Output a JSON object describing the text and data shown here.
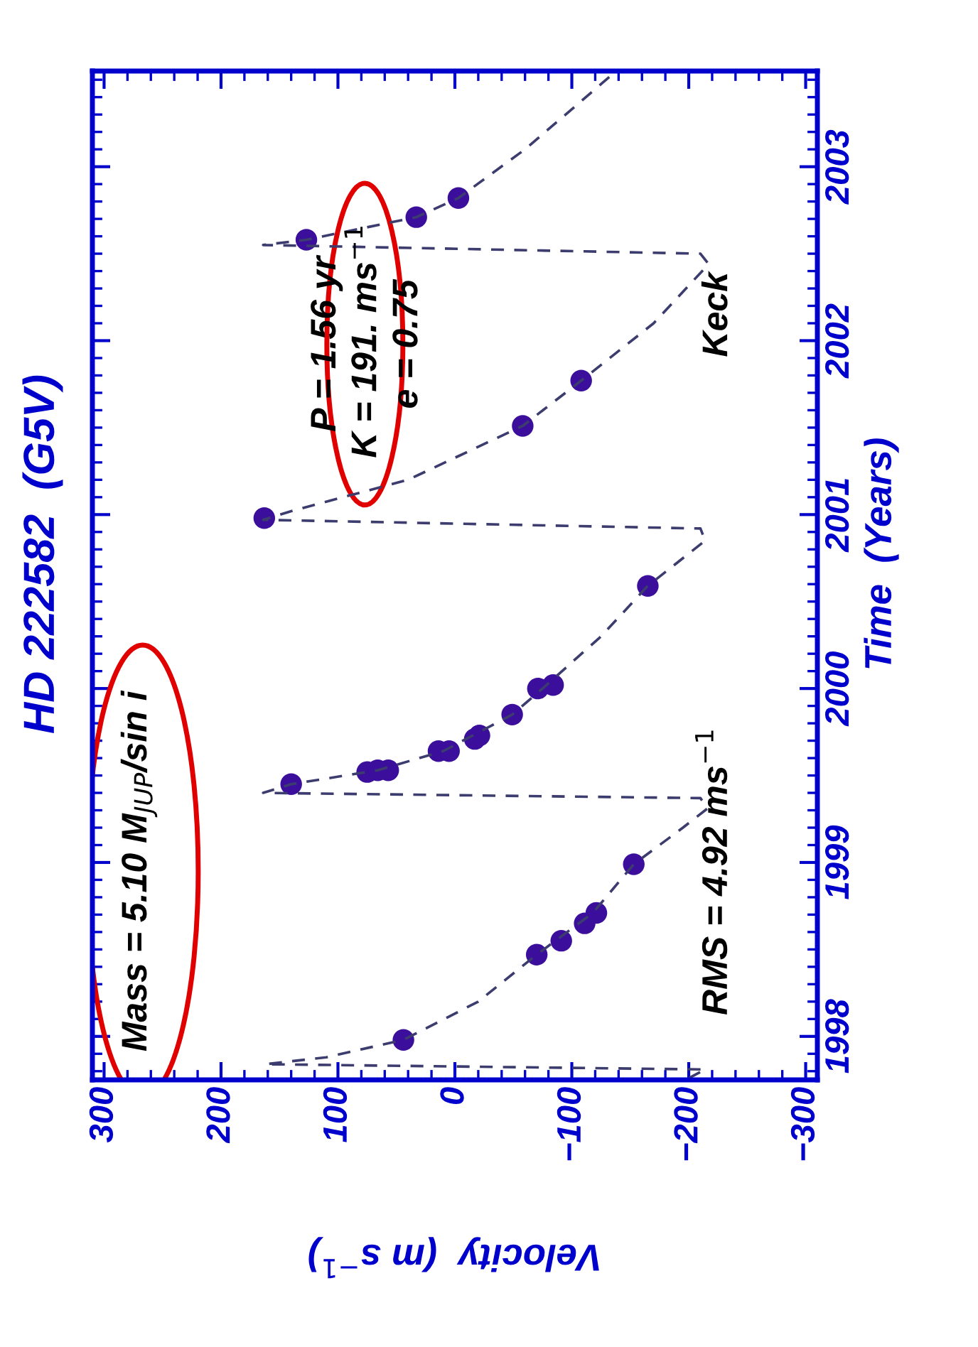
{
  "chart_data": {
    "type": "scatter",
    "orientation": "horizontal",
    "title": "HD 222582  (G5V)",
    "ylabel": "Time  (Years)",
    "xlabel": "Velocity  (m s$^{−1}$)",
    "ylim": [
      1997.75,
      2003.55
    ],
    "yticks": [
      1998,
      1999,
      2000,
      2001,
      2002,
      2003
    ],
    "xlim": [
      310,
      -310
    ],
    "xticks": [
      {
        "value": 300,
        "label": "300"
      },
      {
        "value": 200,
        "label": "200"
      },
      {
        "value": 100,
        "label": "100"
      },
      {
        "value": 0,
        "label": "0"
      },
      {
        "value": -100,
        "label": "−100"
      },
      {
        "value": -200,
        "label": "−200"
      },
      {
        "value": -300,
        "label": "−300"
      }
    ],
    "grid": false,
    "series": [
      {
        "type": "line",
        "line_style": "dashed",
        "marker": "none",
        "color": "#3c3c6e",
        "x": [
          1997.76,
          1997.81,
          1997.84,
          1997.88,
          1997.98,
          1998.2,
          1998.47,
          1998.71,
          1998.99,
          1999.2,
          1999.31,
          1999.37,
          1999.4,
          1999.45,
          1999.53,
          1999.64,
          1999.85,
          2000.0,
          2000.3,
          2000.59,
          2000.85,
          2000.92,
          2000.97,
          2001.02,
          2001.2,
          2001.51,
          2001.77,
          2002.1,
          2002.44,
          2002.5,
          2002.55,
          2002.58,
          2002.71,
          2002.82,
          2003.1,
          2003.55
        ],
        "values": [
          -200,
          -214,
          162,
          110,
          44,
          -20,
          -70,
          -118,
          -153,
          -195,
          -216,
          -210,
          164,
          140,
          66,
          10,
          -49,
          -75,
          -125,
          -165,
          -214,
          -210,
          164,
          140,
          40,
          -58,
          -108,
          -170,
          -217,
          -210,
          164,
          127,
          33,
          -3,
          -60,
          -138
        ]
      },
      {
        "color": "#3b0f9c",
        "marker": "circle",
        "x": [
          1997.98,
          1998.47,
          1998.55,
          1998.65,
          1998.71,
          1998.99,
          1999.45,
          1999.52,
          1999.53,
          1999.53,
          1999.64,
          1999.64,
          1999.71,
          1999.73,
          1999.85,
          2000.0,
          2000.02,
          2000.59,
          2000.98,
          2001.51,
          2001.77,
          2002.58,
          2002.71,
          2002.82
        ],
        "values": [
          44,
          -70,
          -91,
          -111,
          -121,
          -153,
          140,
          75,
          66,
          57,
          14,
          5,
          -17,
          -21,
          -49,
          -71,
          -84,
          -165,
          163,
          -58,
          -108,
          127,
          33,
          -3
        ]
      }
    ],
    "annotations": [
      "Mass = 5.10 M$_{JUP}$/sin i",
      "P = 1.56 yr",
      "K = 191. ms$^{−1}$",
      "e = 0.75",
      "RMS = 4.92 ms$^{−1}$",
      "Keck"
    ]
  }
}
